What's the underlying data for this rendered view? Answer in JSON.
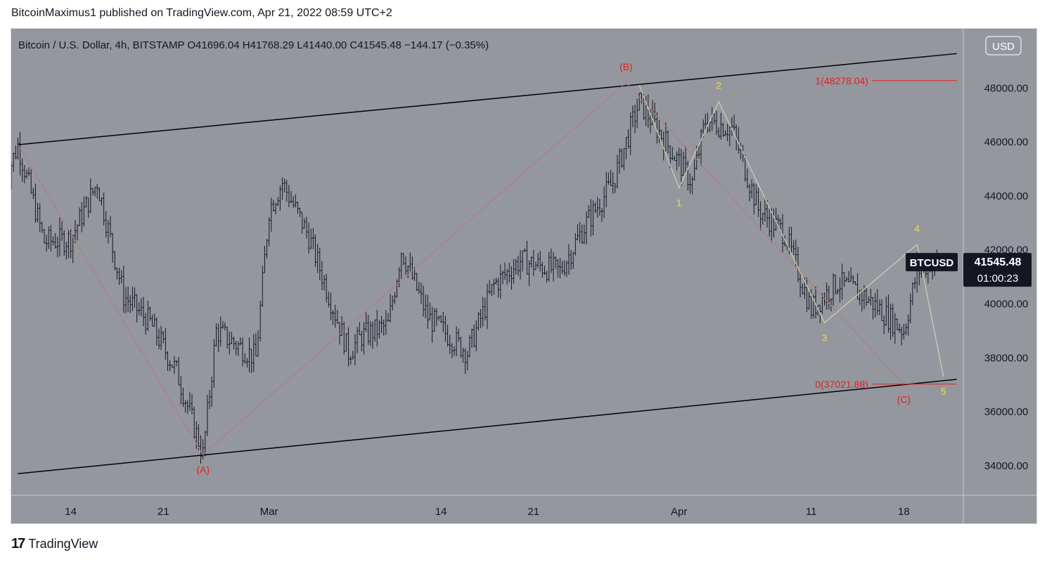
{
  "header": {
    "publisher_line": "BitcoinMaximus1 published on TradingView.com, Apr 21, 2022 08:59 UTC+2"
  },
  "legend": {
    "symbol": "Bitcoin / U.S. Dollar, 4h, BITSTAMP",
    "o_label": "O",
    "o": "41696.04",
    "h_label": "H",
    "h": "41768.29",
    "l_label": "L",
    "l": "41440.00",
    "c_label": "C",
    "c": "41545.48",
    "change": "−144.17 (−0.35%)"
  },
  "currency_button": "USD",
  "price_tag": {
    "symbol": "BTCUSD",
    "price": "41545.48",
    "countdown": "01:00:23"
  },
  "footer": {
    "logo": "17",
    "brand": "TradingView"
  },
  "colors": {
    "background": "#95979f",
    "candle": "#131722",
    "wave_red": "#e41e1e",
    "wave_yellow": "#f5d742",
    "path_red": "#b8767a",
    "path_yellow": "#d3d0ae"
  },
  "chart_data": {
    "type": "candlestick",
    "timeframe": "4h",
    "y_axis": {
      "ticks": [
        34000,
        36000,
        38000,
        40000,
        42000,
        44000,
        46000,
        48000
      ],
      "tick_labels": [
        "34000.00",
        "36000.00",
        "38000.00",
        "40000.00",
        "42000.00",
        "44000.00",
        "46000.00",
        "48000.00"
      ],
      "range": [
        32900,
        50200
      ]
    },
    "x_axis": {
      "tick_labels": [
        "14",
        "21",
        "Mar",
        "14",
        "21",
        "Apr",
        "11",
        "18"
      ],
      "range": [
        "2022-02-09T12:00",
        "2022-04-22T12:00"
      ]
    },
    "ohlc_keypoints": [
      {
        "t": "2022-02-09",
        "c": 44500
      },
      {
        "t": "2022-02-10",
        "c": 45900
      },
      {
        "t": "2022-02-12",
        "c": 42300
      },
      {
        "t": "2022-02-14",
        "c": 42400
      },
      {
        "t": "2022-02-16",
        "c": 44500
      },
      {
        "t": "2022-02-18",
        "c": 40300
      },
      {
        "t": "2022-02-20",
        "c": 39300
      },
      {
        "t": "2022-02-22",
        "c": 37500
      },
      {
        "t": "2022-02-24",
        "c": 34400
      },
      {
        "t": "2022-02-25",
        "c": 39000
      },
      {
        "t": "2022-02-28",
        "c": 38000
      },
      {
        "t": "2022-03-01",
        "c": 43500
      },
      {
        "t": "2022-03-02",
        "c": 44500
      },
      {
        "t": "2022-03-04",
        "c": 42500
      },
      {
        "t": "2022-03-07",
        "c": 38200
      },
      {
        "t": "2022-03-08",
        "c": 38800
      },
      {
        "t": "2022-03-10",
        "c": 39200
      },
      {
        "t": "2022-03-11",
        "c": 42000
      },
      {
        "t": "2022-03-13",
        "c": 39500
      },
      {
        "t": "2022-03-16",
        "c": 38200
      },
      {
        "t": "2022-03-18",
        "c": 40700
      },
      {
        "t": "2022-03-20",
        "c": 41600
      },
      {
        "t": "2022-03-23",
        "c": 41200
      },
      {
        "t": "2022-03-25",
        "c": 43000
      },
      {
        "t": "2022-03-27",
        "c": 44500
      },
      {
        "t": "2022-03-29",
        "c": 47500
      },
      {
        "t": "2022-03-31",
        "c": 46000
      },
      {
        "t": "2022-04-02",
        "c": 44500
      },
      {
        "t": "2022-04-03",
        "c": 46800
      },
      {
        "t": "2022-04-05",
        "c": 46500
      },
      {
        "t": "2022-04-07",
        "c": 43500
      },
      {
        "t": "2022-04-09",
        "c": 42600
      },
      {
        "t": "2022-04-11",
        "c": 39800
      },
      {
        "t": "2022-04-13",
        "c": 40800
      },
      {
        "t": "2022-04-15",
        "c": 40300
      },
      {
        "t": "2022-04-18",
        "c": 39000
      },
      {
        "t": "2022-04-19",
        "c": 41200
      },
      {
        "t": "2022-04-20",
        "c": 41545
      }
    ],
    "channel": {
      "upper": [
        {
          "t": "2022-02-10",
          "y": 45900
        },
        {
          "t": "2022-04-22",
          "y": 49280
        }
      ],
      "lower": [
        {
          "t": "2022-02-10",
          "y": 33700
        },
        {
          "t": "2022-04-22",
          "y": 37200
        }
      ]
    },
    "fib_levels": [
      {
        "label": "1(48278.04)",
        "value": 48278.04,
        "from": "2022-04-10",
        "to": "2022-04-22"
      },
      {
        "label": "0(37021.88)",
        "value": 37021.88,
        "from": "2022-04-10",
        "to": "2022-04-22"
      }
    ],
    "abc_path": [
      {
        "t": "2022-02-10",
        "y": 45900
      },
      {
        "t": "2022-02-24",
        "y": 34400
      },
      {
        "t": "2022-03-28",
        "y": 48200
      },
      {
        "t": "2022-04-18",
        "y": 37000
      }
    ],
    "wave_path": [
      {
        "t": "2022-03-29",
        "y": 48100
      },
      {
        "t": "2022-04-01",
        "y": 44300
      },
      {
        "t": "2022-04-04",
        "y": 47500
      },
      {
        "t": "2022-04-12",
        "y": 39300
      },
      {
        "t": "2022-04-19",
        "y": 42200
      },
      {
        "t": "2022-04-21",
        "y": 37300
      }
    ],
    "annotations": [
      {
        "text": "(A)",
        "t": "2022-02-24",
        "y": 34400,
        "color": "#e41e1e",
        "pos": "below"
      },
      {
        "text": "(B)",
        "t": "2022-03-28",
        "y": 48200,
        "color": "#e41e1e",
        "pos": "above"
      },
      {
        "text": "(C)",
        "t": "2022-04-18",
        "y": 37000,
        "color": "#e41e1e",
        "pos": "below"
      },
      {
        "text": "1",
        "t": "2022-04-01",
        "y": 44300,
        "color": "#f5d742",
        "pos": "below"
      },
      {
        "text": "2",
        "t": "2022-04-04",
        "y": 47500,
        "color": "#f5d742",
        "pos": "above"
      },
      {
        "text": "3",
        "t": "2022-04-12",
        "y": 39300,
        "color": "#f5d742",
        "pos": "below"
      },
      {
        "text": "4",
        "t": "2022-04-19",
        "y": 42200,
        "color": "#f5d742",
        "pos": "above"
      },
      {
        "text": "5",
        "t": "2022-04-21",
        "y": 37300,
        "color": "#f5d742",
        "pos": "below"
      }
    ],
    "last_price": 41545.48
  }
}
